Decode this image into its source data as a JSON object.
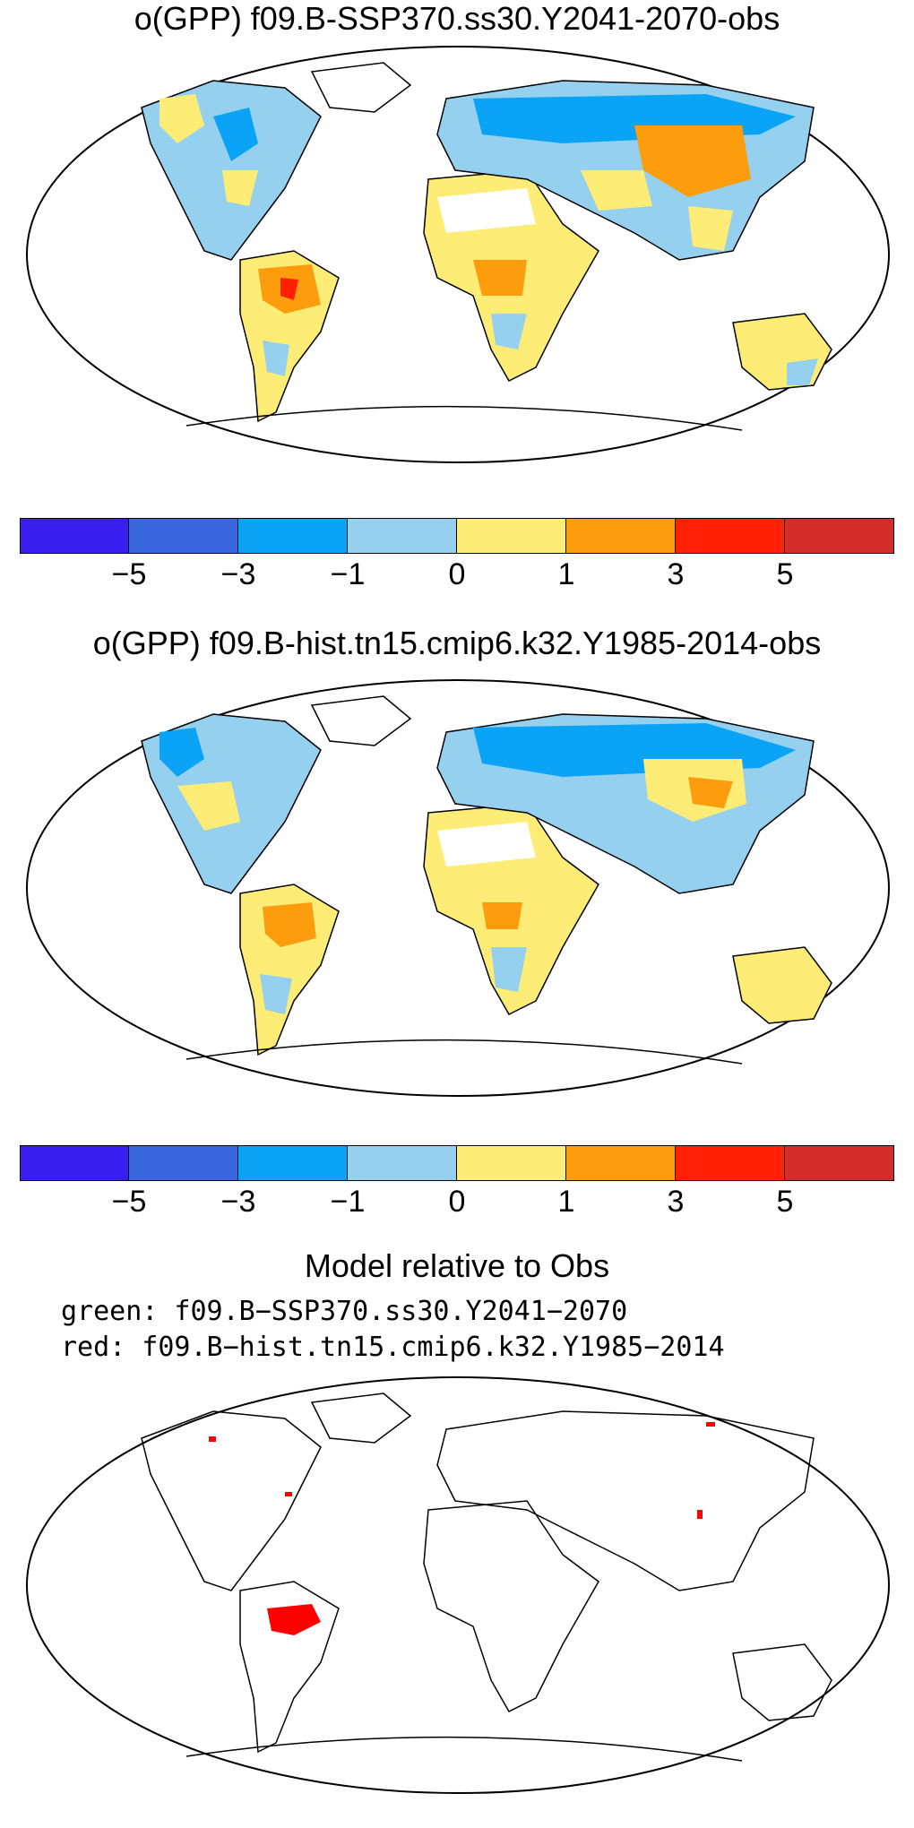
{
  "panels": [
    {
      "title": "o(GPP) f09.B-SSP370.ss30.Y2041-2070-obs",
      "tick_labels": [
        "−5",
        "−3",
        "−1",
        "0",
        "1",
        "3",
        "5"
      ]
    },
    {
      "title": "o(GPP) f09.B-hist.tn15.cmip6.k32.Y1985-2014-obs",
      "tick_labels": [
        "−5",
        "−3",
        "−1",
        "0",
        "1",
        "3",
        "5"
      ]
    }
  ],
  "colorbar": {
    "colors": [
      "#3a1ef0",
      "#3a66dd",
      "#0aa3f5",
      "#95d0ee",
      "#fdec76",
      "#fd9c0d",
      "#ff2006",
      "#d52c2c"
    ]
  },
  "relative_panel": {
    "title": "Model relative to Obs",
    "legend_green": "green: f09.B−SSP370.ss30.Y2041−2070",
    "legend_red": "red: f09.B−hist.tn15.cmip6.k32.Y1985−2014",
    "highlight_color": "#ff0000"
  }
}
